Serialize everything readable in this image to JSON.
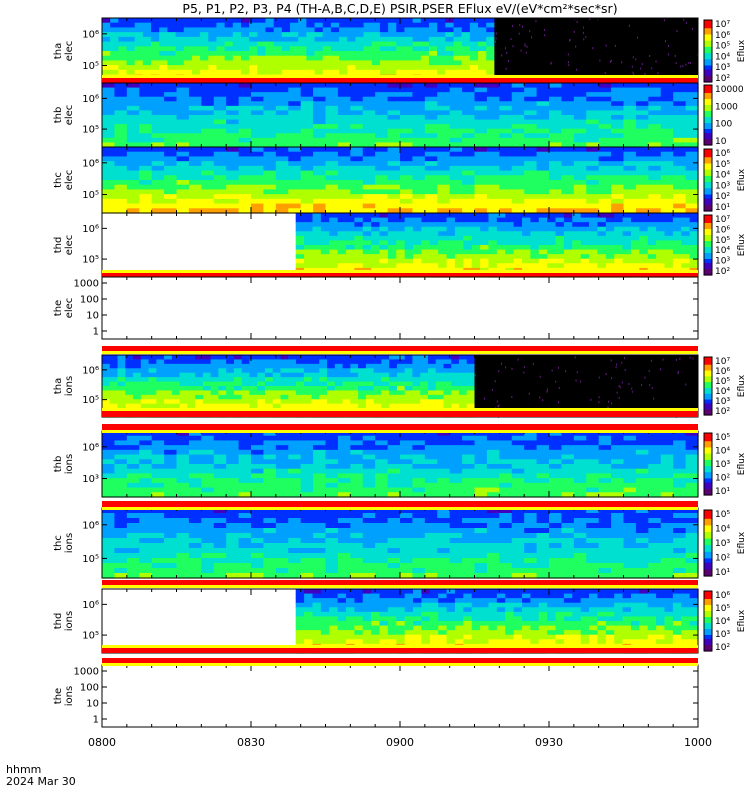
{
  "title": "P5, P1, P2, P3, P4 (TH-A,B,C,D,E) PSIR,PSER EFlux eV/(eV*cm²*sec*sr)",
  "time_axis": {
    "label_line1": "hhmm",
    "label_line2": "2024 Mar 30",
    "ticks": [
      "0800",
      "0830",
      "0900",
      "0930",
      "1000"
    ],
    "tick_minutes": [
      0,
      30,
      60,
      90,
      120
    ]
  },
  "colors": {
    "colorbar": [
      "#5a0070",
      "#4000c0",
      "#0030ff",
      "#00a0ff",
      "#00e0d0",
      "#20ff60",
      "#b0ff00",
      "#ffff00",
      "#ffa000",
      "#ff0000"
    ],
    "status_red": "#ff0000",
    "status_yellow": "#ffff00",
    "nodata": "#000000"
  },
  "chart_data": [
    {
      "type": "heatmap",
      "probe_label_1": "tha",
      "probe_label_2": "elec",
      "y_ticks": [
        "10⁵",
        "10⁶"
      ],
      "cbar_ticks": [
        "10²",
        "10³",
        "10⁴",
        "10⁵",
        "10⁶",
        "10⁷"
      ],
      "cbar_label": "Eflux",
      "data_end_min": 79,
      "data_start_min": 0
    },
    {
      "type": "heatmap",
      "probe_label_1": "thb",
      "probe_label_2": "elec",
      "y_ticks": [
        "10⁵",
        "10⁶"
      ],
      "cbar_ticks": [
        "10",
        "100",
        "1000",
        "10000"
      ],
      "cbar_label": "",
      "data_end_min": 120,
      "data_start_min": 0
    },
    {
      "type": "heatmap",
      "probe_label_1": "thc",
      "probe_label_2": "elec",
      "y_ticks": [
        "10⁵",
        "10⁶"
      ],
      "cbar_ticks": [
        "10¹",
        "10²",
        "10³",
        "10⁴",
        "10⁵",
        "10⁶"
      ],
      "cbar_label": "Eflux",
      "data_end_min": 120,
      "data_start_min": 0
    },
    {
      "type": "heatmap",
      "probe_label_1": "thd",
      "probe_label_2": "elec",
      "y_ticks": [
        "10⁵",
        "10⁶"
      ],
      "cbar_ticks": [
        "10²",
        "10³",
        "10⁴",
        "10⁵",
        "10⁶",
        "10⁷"
      ],
      "cbar_label": "Eflux",
      "data_end_min": 120,
      "data_start_min": 39
    },
    {
      "type": "line",
      "probe_label_1": "the",
      "probe_label_2": "elec",
      "y_ticks": [
        "1",
        "10",
        "100",
        "1000"
      ],
      "note": "empty"
    },
    {
      "type": "heatmap",
      "probe_label_1": "tha",
      "probe_label_2": "ions",
      "y_ticks": [
        "10⁵",
        "10⁶"
      ],
      "cbar_ticks": [
        "10²",
        "10³",
        "10⁴",
        "10⁵",
        "10⁶",
        "10⁷"
      ],
      "cbar_label": "Eflux",
      "data_end_min": 75,
      "data_start_min": 0
    },
    {
      "type": "heatmap",
      "probe_label_1": "thb",
      "probe_label_2": "ions",
      "y_ticks": [
        "10³",
        "10⁶"
      ],
      "cbar_ticks": [
        "10¹",
        "10²",
        "10³",
        "10⁴",
        "10⁵"
      ],
      "cbar_label": "Eflux",
      "data_end_min": 120,
      "data_start_min": 0
    },
    {
      "type": "heatmap",
      "probe_label_1": "thc",
      "probe_label_2": "ions",
      "y_ticks": [
        "10⁵",
        "10⁶"
      ],
      "cbar_ticks": [
        "10¹",
        "10²",
        "10³",
        "10⁴",
        "10⁵"
      ],
      "cbar_label": "Eflux",
      "data_end_min": 120,
      "data_start_min": 0
    },
    {
      "type": "heatmap",
      "probe_label_1": "thd",
      "probe_label_2": "ions",
      "y_ticks": [
        "10⁵",
        "10⁶"
      ],
      "cbar_ticks": [
        "10²",
        "10³",
        "10⁴",
        "10⁵",
        "10⁶"
      ],
      "cbar_label": "Eflux",
      "data_end_min": 120,
      "data_start_min": 39
    },
    {
      "type": "line",
      "probe_label_1": "the",
      "probe_label_2": "ions",
      "y_ticks": [
        "1",
        "10",
        "100",
        "1000"
      ],
      "note": "empty"
    }
  ]
}
